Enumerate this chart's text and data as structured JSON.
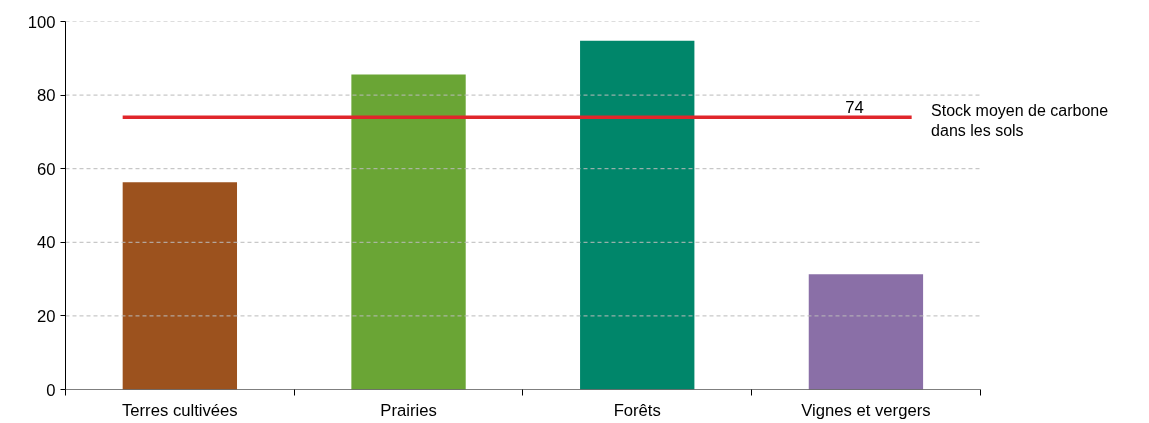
{
  "chart_data": {
    "type": "bar",
    "categories": [
      "Terres cultivées",
      "Prairies",
      "Forêts",
      "Vignes et vergers"
    ],
    "values": [
      56.3,
      85.6,
      94.8,
      31.3
    ],
    "colors": [
      "#9c521e",
      "#6aa535",
      "#00866a",
      "#8a6fa7"
    ],
    "ylim": [
      0,
      100
    ],
    "yticks": [
      0,
      20,
      40,
      60,
      80,
      100
    ],
    "grid": "y",
    "ref_lines": [
      {
        "axis": "y",
        "value": 74,
        "label": "74",
        "color": "#e0262b"
      }
    ],
    "annotations": [
      "Stock moyen de carbone\ndans les sols"
    ]
  }
}
